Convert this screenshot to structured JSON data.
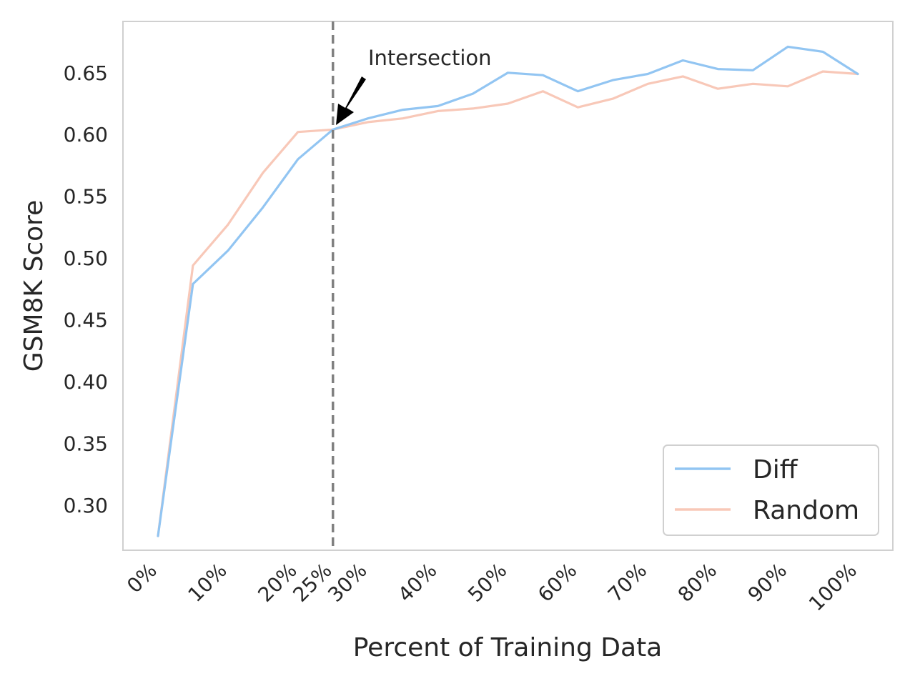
{
  "chart_data": {
    "type": "line",
    "title": "",
    "xlabel": "Percent of Training Data",
    "ylabel": "GSM8K Score",
    "x": [
      0,
      5,
      10,
      15,
      20,
      25,
      30,
      35,
      40,
      45,
      50,
      55,
      60,
      65,
      70,
      75,
      80,
      85,
      90,
      95,
      100
    ],
    "xlim": [
      -5,
      105
    ],
    "ylim": [
      0.2635,
      0.6915
    ],
    "x_ticks": [
      0,
      10,
      20,
      25,
      30,
      40,
      50,
      60,
      70,
      80,
      90,
      100
    ],
    "x_tick_labels": [
      "0%",
      "10%",
      "20%",
      "25%",
      "30%",
      "40%",
      "50%",
      "60%",
      "70%",
      "80%",
      "90%",
      "100%"
    ],
    "y_ticks": [
      0.3,
      0.35,
      0.4,
      0.45,
      0.5,
      0.55,
      0.6,
      0.65
    ],
    "y_tick_labels": [
      "0.30",
      "0.35",
      "0.40",
      "0.45",
      "0.50",
      "0.55",
      "0.60",
      "0.65"
    ],
    "grid": false,
    "legend_position": "bottom-right",
    "series": [
      {
        "name": "Diff",
        "color": "#92c5f2",
        "values": [
          0.275,
          0.479,
          0.506,
          0.541,
          0.58,
          0.604,
          0.613,
          0.62,
          0.623,
          0.633,
          0.65,
          0.648,
          0.635,
          0.644,
          0.649,
          0.66,
          0.653,
          0.652,
          0.671,
          0.667,
          0.649
        ]
      },
      {
        "name": "Random",
        "color": "#f8c8b8",
        "values": [
          0.275,
          0.494,
          0.527,
          0.569,
          0.602,
          0.604,
          0.61,
          0.613,
          0.619,
          0.621,
          0.625,
          0.635,
          0.622,
          0.629,
          0.641,
          0.647,
          0.637,
          0.641,
          0.639,
          0.651,
          0.649
        ]
      }
    ],
    "vline": {
      "x": 25,
      "color": "#808080",
      "style": "dashed"
    },
    "annotation": {
      "text": "Intersection",
      "x": 25,
      "y": 0.604
    }
  }
}
